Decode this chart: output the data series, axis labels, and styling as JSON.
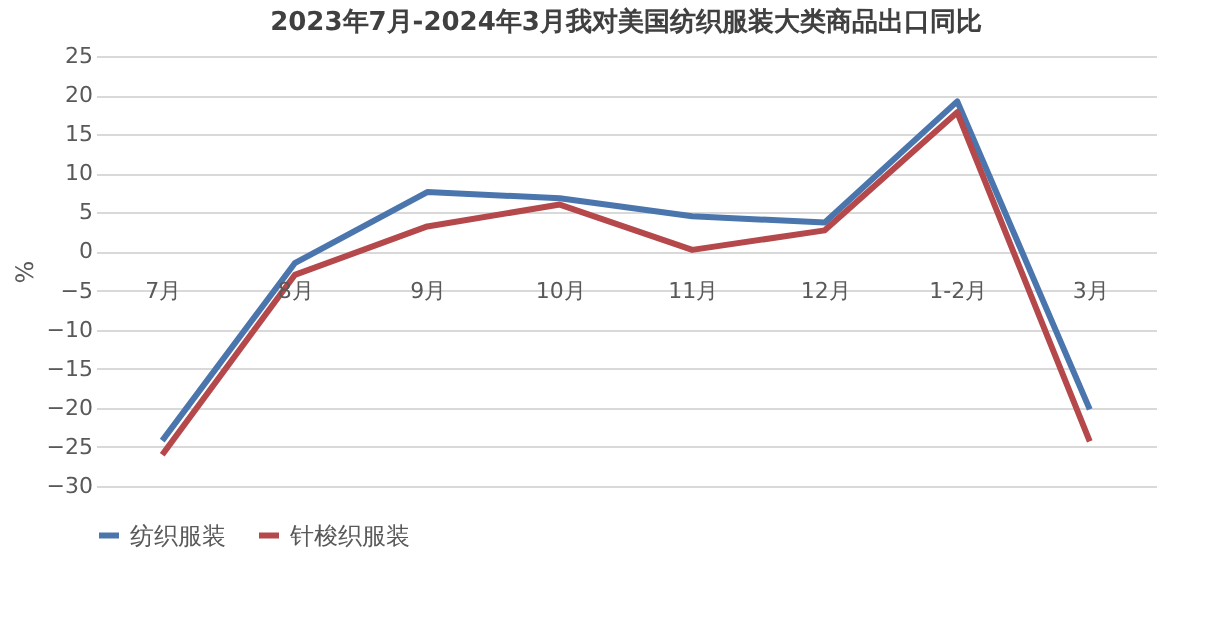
{
  "chart_data": {
    "type": "line",
    "title": "2023年7月-2024年3月我对美国纺织服装大类商品出口同比",
    "ylabel": "%",
    "categories": [
      "7月",
      "8月",
      "9月",
      "10月",
      "11月",
      "12月",
      "1-2月",
      "3月"
    ],
    "series": [
      {
        "name": "纺织服装",
        "color": "#4a76ad",
        "values": [
          -24.2,
          -1.5,
          7.6,
          6.8,
          4.5,
          3.7,
          19.2,
          -20.2
        ]
      },
      {
        "name": "针梭织服装",
        "color": "#b5484a",
        "values": [
          -26,
          -3,
          3.2,
          6.0,
          0.2,
          2.7,
          17.8,
          -24.3
        ]
      }
    ],
    "ylim": [
      -30,
      25
    ],
    "yticks": [
      -30,
      -25,
      -20,
      -15,
      -10,
      -5,
      0,
      5,
      10,
      15,
      20,
      25
    ],
    "grid": "y",
    "legend": "bottom",
    "marker": "none",
    "line_style": "solid"
  }
}
